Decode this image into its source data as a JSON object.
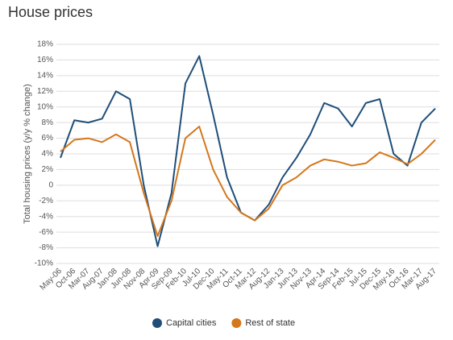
{
  "chart_data": {
    "type": "line",
    "title": "House prices",
    "y_label": "Total housing prices (y/y % change)",
    "categories": [
      "May-06",
      "Oct-06",
      "Mar-07",
      "Aug-07",
      "Jan-08",
      "Jun-08",
      "Nov-08",
      "Apr-09",
      "Sep-09",
      "Feb-10",
      "Jul-10",
      "Dec-10",
      "May-11",
      "Oct-11",
      "Mar-12",
      "Aug-12",
      "Jan-13",
      "Jun-13",
      "Nov-13",
      "Apr-14",
      "Sep-14",
      "Feb-15",
      "Jul-15",
      "Dec-15",
      "May-16",
      "Oct-16",
      "Mar-17",
      "Aug-17"
    ],
    "series": [
      {
        "name": "Capital cities",
        "color": "#1f4e79",
        "values": [
          3.5,
          8.3,
          8.0,
          8.5,
          12,
          11,
          0,
          -7.8,
          -1,
          13,
          16.5,
          9,
          1,
          -3.5,
          -4.5,
          -2.5,
          1,
          3.5,
          6.5,
          10.5,
          9.8,
          7.5,
          10.5,
          11,
          4,
          2.5,
          8,
          9.8
        ]
      },
      {
        "name": "Rest of state",
        "color": "#d4771d",
        "values": [
          4.3,
          5.8,
          6.0,
          5.5,
          6.5,
          5.5,
          -1,
          -6.5,
          -2,
          6,
          7.5,
          2,
          -1.5,
          -3.5,
          -4.5,
          -3,
          0,
          1,
          2.5,
          3.3,
          3,
          2.5,
          2.8,
          4.2,
          3.5,
          2.7,
          4,
          5.8
        ]
      }
    ],
    "ylim": [
      -10,
      18
    ],
    "yticks": [
      {
        "value": -10,
        "label": "-10%"
      },
      {
        "value": -8,
        "label": "-8%"
      },
      {
        "value": -6,
        "label": "-6%"
      },
      {
        "value": -4,
        "label": "-4%"
      },
      {
        "value": -2,
        "label": "-2%"
      },
      0,
      {
        "value": 2,
        "label": "2%"
      },
      {
        "value": 4,
        "label": "4%"
      },
      {
        "value": 6,
        "label": "6%"
      },
      {
        "value": 8,
        "label": "8%"
      },
      {
        "value": 10,
        "label": "10%"
      },
      {
        "value": 12,
        "label": "12%"
      },
      {
        "value": 14,
        "label": "14%"
      },
      {
        "value": 16,
        "label": "16%"
      },
      {
        "value": 18,
        "label": "18%"
      }
    ],
    "grid": true
  }
}
